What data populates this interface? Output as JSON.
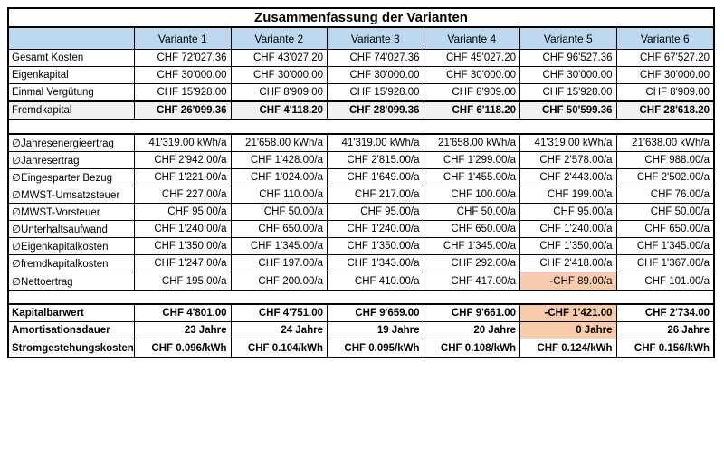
{
  "title": "Zusammenfassung der Varianten",
  "header": {
    "corner": "",
    "columns": [
      "Variante 1",
      "Variante 2",
      "Variante 3",
      "Variante 4",
      "Variante 5",
      "Variante 6"
    ]
  },
  "colors": {
    "header_bg": "#BDD7EE",
    "highlight_bg": "#F8CBAD",
    "shaded_bg": "#F1F1F1",
    "grid": "#000000"
  },
  "sections": [
    {
      "id": "finanzierung",
      "rows": [
        {
          "label": "Gesamt Kosten",
          "bold_label": false,
          "bold_values": false,
          "shaded": false,
          "highlight_cols": [],
          "values": [
            "CHF 72'027.36",
            "CHF 43'027.20",
            "CHF 74'027.36",
            "CHF 45'027.20",
            "CHF 96'527.36",
            "CHF 67'527.20"
          ]
        },
        {
          "label": "Eigenkapital",
          "bold_label": false,
          "bold_values": false,
          "shaded": false,
          "highlight_cols": [],
          "values": [
            "CHF 30'000.00",
            "CHF 30'000.00",
            "CHF 30'000.00",
            "CHF 30'000.00",
            "CHF 30'000.00",
            "CHF 30'000.00"
          ]
        },
        {
          "label": "Einmal Vergütung",
          "bold_label": false,
          "bold_values": false,
          "shaded": false,
          "highlight_cols": [],
          "values": [
            "CHF 15'928.00",
            "CHF 8'909.00",
            "CHF 15'928.00",
            "CHF 8'909.00",
            "CHF 15'928.00",
            "CHF 8'909.00"
          ]
        },
        {
          "label": "Fremdkapital",
          "bold_label": false,
          "bold_values": true,
          "shaded": true,
          "strong_top": true,
          "highlight_cols": [],
          "values": [
            "CHF 26'099.36",
            "CHF 4'118.20",
            "CHF 28'099.36",
            "CHF 6'118.20",
            "CHF 50'599.36",
            "CHF 28'618.20"
          ]
        }
      ]
    },
    {
      "id": "jahreswerte",
      "rows": [
        {
          "label": "∅Jahresenergieertrag",
          "bold_label": false,
          "bold_values": false,
          "shaded": false,
          "highlight_cols": [],
          "values": [
            "41'319.00 kWh/a",
            "21'658.00 kWh/a",
            "41'319.00 kWh/a",
            "21'658.00 kWh/a",
            "41'319.00 kWh/a",
            "21'638.00 kWh/a"
          ]
        },
        {
          "label": "∅Jahresertrag",
          "bold_label": false,
          "bold_values": false,
          "shaded": false,
          "highlight_cols": [],
          "values": [
            "CHF 2'942.00/a",
            "CHF 1'428.00/a",
            "CHF 2'815.00/a",
            "CHF 1'299.00/a",
            "CHF 2'578.00/a",
            "CHF 988.00/a"
          ]
        },
        {
          "label": "∅Eingesparter Bezug",
          "bold_label": false,
          "bold_values": false,
          "shaded": false,
          "highlight_cols": [],
          "values": [
            "CHF 1'221.00/a",
            "CHF 1'024.00/a",
            "CHF 1'649.00/a",
            "CHF 1'455.00/a",
            "CHF 2'443.00/a",
            "CHF 2'502.00/a"
          ]
        },
        {
          "label": "∅MWST-Umsatzsteuer",
          "bold_label": false,
          "bold_values": false,
          "shaded": false,
          "highlight_cols": [],
          "values": [
            "CHF 227.00/a",
            "CHF 110.00/a",
            "CHF 217.00/a",
            "CHF 100.00/a",
            "CHF 199.00/a",
            "CHF 76.00/a"
          ]
        },
        {
          "label": "∅MWST-Vorsteuer",
          "bold_label": false,
          "bold_values": false,
          "shaded": false,
          "highlight_cols": [],
          "values": [
            "CHF 95.00/a",
            "CHF 50.00/a",
            "CHF 95.00/a",
            "CHF 50.00/a",
            "CHF 95.00/a",
            "CHF 50.00/a"
          ]
        },
        {
          "label": "∅Unterhaltsaufwand",
          "bold_label": false,
          "bold_values": false,
          "shaded": false,
          "highlight_cols": [],
          "values": [
            "CHF 1'240.00/a",
            "CHF 650.00/a",
            "CHF 1'240.00/a",
            "CHF 650.00/a",
            "CHF 1'240.00/a",
            "CHF 650.00/a"
          ]
        },
        {
          "label": "∅Eigenkapitalkosten",
          "bold_label": false,
          "bold_values": false,
          "shaded": false,
          "highlight_cols": [],
          "values": [
            "CHF 1'350.00/a",
            "CHF 1'345.00/a",
            "CHF 1'350.00/a",
            "CHF 1'345.00/a",
            "CHF 1'350.00/a",
            "CHF 1'345.00/a"
          ]
        },
        {
          "label": "∅fremdkapitalkosten",
          "bold_label": false,
          "bold_values": false,
          "shaded": false,
          "highlight_cols": [],
          "values": [
            "CHF 1'247.00/a",
            "CHF 197.00/a",
            "CHF 1'343.00/a",
            "CHF 292.00/a",
            "CHF 2'418.00/a",
            "CHF 1'367.00/a"
          ]
        },
        {
          "label": "∅Nettoertrag",
          "bold_label": false,
          "bold_values": false,
          "shaded": false,
          "highlight_cols": [
            4
          ],
          "values": [
            "CHF 195.00/a",
            "CHF 200.00/a",
            "CHF 410.00/a",
            "CHF 417.00/a",
            "-CHF 89.00/a",
            "CHF 101.00/a"
          ]
        }
      ]
    },
    {
      "id": "kennzahlen",
      "rows": [
        {
          "label": "Kapitalbarwert",
          "bold_label": true,
          "bold_values": true,
          "shaded": false,
          "highlight_cols": [
            4
          ],
          "values": [
            "CHF 4'801.00",
            "CHF 4'751.00",
            "CHF 9'659.00",
            "CHF 9'661.00",
            "-CHF 1'421.00",
            "CHF 2'734.00"
          ]
        },
        {
          "label": "Amortisationsdauer",
          "bold_label": true,
          "bold_values": true,
          "shaded": false,
          "highlight_cols": [
            4
          ],
          "values": [
            "23 Jahre",
            "24 Jahre",
            "19 Jahre",
            "20 Jahre",
            "0 Jahre",
            "26 Jahre"
          ]
        },
        {
          "label": "Stromgestehungskosten",
          "bold_label": true,
          "bold_values": true,
          "shaded": false,
          "highlight_cols": [],
          "values": [
            "CHF 0.096/kWh",
            "CHF 0.104/kWh",
            "CHF 0.095/kWh",
            "CHF 0.108/kWh",
            "CHF 0.124/kWh",
            "CHF 0.156/kWh"
          ]
        }
      ]
    }
  ]
}
